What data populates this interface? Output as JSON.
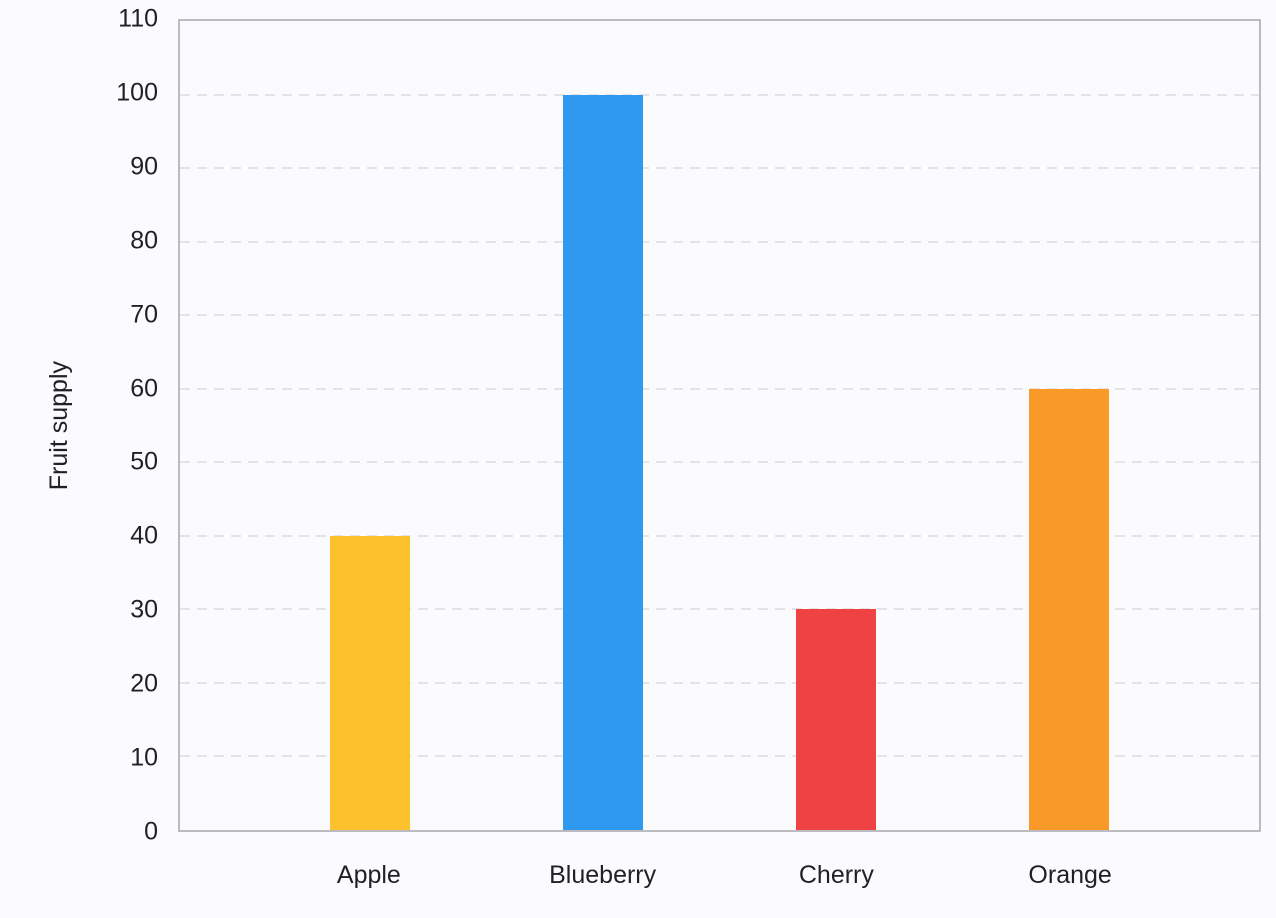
{
  "chart_data": {
    "type": "bar",
    "title": "",
    "xlabel": "",
    "ylabel": "Fruit supply",
    "categories": [
      "Apple",
      "Blueberry",
      "Cherry",
      "Orange"
    ],
    "values": [
      40,
      100,
      30,
      60
    ],
    "bar_colors": [
      "#fcc12d",
      "#2e99ee",
      "#ef4343",
      "#f99929"
    ],
    "ylim": [
      0,
      110
    ],
    "ytick_step": 10,
    "yticks": [
      0,
      10,
      20,
      30,
      40,
      50,
      60,
      70,
      80,
      90,
      100,
      110
    ],
    "grid": "horizontal dashed",
    "legend": "none"
  },
  "colors": {
    "background": "#fbfbfe",
    "axis_border": "#bcbcc0",
    "gridline": "#e4e4e8",
    "text": "#1f2127"
  }
}
